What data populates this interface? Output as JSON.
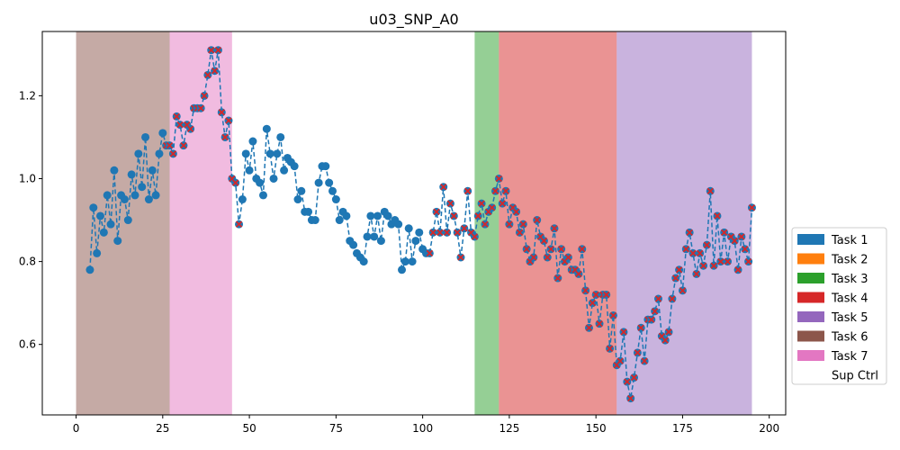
{
  "chart_data": {
    "type": "line",
    "title": "u03_SNP_A0",
    "xlabel": "",
    "ylabel": "",
    "xlim": [
      -9.75,
      204.75
    ],
    "ylim": [
      0.43,
      1.355
    ],
    "x_ticks": [
      0,
      25,
      50,
      75,
      100,
      125,
      150,
      175,
      200
    ],
    "y_ticks": [
      0.6,
      0.8,
      1.0,
      1.2
    ],
    "grid": false,
    "legend_position": "right",
    "legend": [
      {
        "label": "Task 1",
        "color": "#1f77b4"
      },
      {
        "label": "Task 2",
        "color": "#ff7f0e"
      },
      {
        "label": "Task 3",
        "color": "#2ca02c"
      },
      {
        "label": "Task 4",
        "color": "#d62728"
      },
      {
        "label": "Task 5",
        "color": "#9467bd"
      },
      {
        "label": "Task 6",
        "color": "#8c564b"
      },
      {
        "label": "Task 7",
        "color": "#e377c2"
      },
      {
        "label": "Sup Ctrl",
        "color": "#ffffff"
      }
    ],
    "spans": [
      {
        "task": "Task 6",
        "x0": 0,
        "x1": 27,
        "color": "#8c564b"
      },
      {
        "task": "Task 7",
        "x0": 27,
        "x1": 45,
        "color": "#e377c2"
      },
      {
        "task": "Task 3",
        "x0": 115,
        "x1": 122,
        "color": "#2ca02c"
      },
      {
        "task": "Task 4",
        "x0": 122,
        "x1": 156,
        "color": "#d62728"
      },
      {
        "task": "Task 5",
        "x0": 156,
        "x1": 195,
        "color": "#9467bd"
      }
    ],
    "series": {
      "line_color": "#1f77b4",
      "marker_color": "#1f77b4",
      "highlight_color": "#d62728",
      "x": [
        4,
        5,
        6,
        7,
        8,
        9,
        10,
        11,
        12,
        13,
        14,
        15,
        16,
        17,
        18,
        19,
        20,
        21,
        22,
        23,
        24,
        25,
        26,
        27,
        28,
        29,
        30,
        31,
        32,
        33,
        34,
        35,
        36,
        37,
        38,
        39,
        40,
        41,
        42,
        43,
        44,
        45,
        46,
        47,
        48,
        49,
        50,
        51,
        52,
        53,
        54,
        55,
        56,
        57,
        58,
        59,
        60,
        61,
        62,
        63,
        64,
        65,
        66,
        67,
        68,
        69,
        70,
        71,
        72,
        73,
        74,
        75,
        76,
        77,
        78,
        79,
        80,
        81,
        82,
        83,
        84,
        85,
        86,
        87,
        88,
        89,
        90,
        91,
        92,
        93,
        94,
        95,
        96,
        97,
        98,
        99,
        100,
        101,
        102,
        103,
        104,
        105,
        106,
        107,
        108,
        109,
        110,
        111,
        112,
        113,
        114,
        115,
        116,
        117,
        118,
        119,
        120,
        121,
        122,
        123,
        124,
        125,
        126,
        127,
        128,
        129,
        130,
        131,
        132,
        133,
        134,
        135,
        136,
        137,
        138,
        139,
        140,
        141,
        142,
        143,
        144,
        145,
        146,
        147,
        148,
        149,
        150,
        151,
        152,
        153,
        154,
        155,
        156,
        157,
        158,
        159,
        160,
        161,
        162,
        163,
        164,
        165,
        166,
        167,
        168,
        169,
        170,
        171,
        172,
        173,
        174,
        175,
        176,
        177,
        178,
        179,
        180,
        181,
        182,
        183,
        184,
        185,
        186,
        187,
        188,
        189,
        190,
        191,
        192,
        193,
        194,
        195
      ],
      "y": [
        0.78,
        0.93,
        0.82,
        0.91,
        0.87,
        0.96,
        0.89,
        1.02,
        0.85,
        0.96,
        0.95,
        0.9,
        1.01,
        0.96,
        1.06,
        0.98,
        1.1,
        0.95,
        1.02,
        0.96,
        1.06,
        1.11,
        1.08,
        1.08,
        1.06,
        1.15,
        1.13,
        1.08,
        1.13,
        1.12,
        1.17,
        1.17,
        1.17,
        1.2,
        1.25,
        1.31,
        1.26,
        1.31,
        1.16,
        1.1,
        1.14,
        1.0,
        0.99,
        0.89,
        0.95,
        1.06,
        1.02,
        1.09,
        1.0,
        0.99,
        0.96,
        1.12,
        1.06,
        1.0,
        1.06,
        1.1,
        1.02,
        1.05,
        1.04,
        1.03,
        0.95,
        0.97,
        0.92,
        0.92,
        0.9,
        0.9,
        0.99,
        1.03,
        1.03,
        0.99,
        0.97,
        0.95,
        0.9,
        0.92,
        0.91,
        0.85,
        0.84,
        0.82,
        0.81,
        0.8,
        0.86,
        0.91,
        0.86,
        0.91,
        0.85,
        0.92,
        0.91,
        0.89,
        0.9,
        0.89,
        0.78,
        0.8,
        0.88,
        0.8,
        0.85,
        0.87,
        0.83,
        0.82,
        0.82,
        0.87,
        0.92,
        0.87,
        0.98,
        0.87,
        0.94,
        0.91,
        0.87,
        0.81,
        0.88,
        0.97,
        0.87,
        0.86,
        0.91,
        0.94,
        0.89,
        0.92,
        0.93,
        0.97,
        1.0,
        0.94,
        0.97,
        0.89,
        0.93,
        0.92,
        0.87,
        0.89,
        0.83,
        0.8,
        0.81,
        0.9,
        0.86,
        0.85,
        0.81,
        0.83,
        0.88,
        0.76,
        0.83,
        0.8,
        0.81,
        0.78,
        0.78,
        0.77,
        0.83,
        0.73,
        0.64,
        0.7,
        0.72,
        0.65,
        0.72,
        0.72,
        0.59,
        0.67,
        0.55,
        0.56,
        0.63,
        0.51,
        0.47,
        0.52,
        0.58,
        0.64,
        0.56,
        0.66,
        0.66,
        0.68,
        0.71,
        0.62,
        0.61,
        0.63,
        0.71,
        0.76,
        0.78,
        0.73,
        0.83,
        0.87,
        0.82,
        0.77,
        0.82,
        0.79,
        0.84,
        0.97,
        0.79,
        0.91,
        0.8,
        0.87,
        0.8,
        0.86,
        0.85,
        0.78,
        0.86,
        0.83,
        0.8,
        0.93
      ],
      "highlighted_x": [
        26,
        27,
        28,
        29,
        30,
        31,
        32,
        33,
        34,
        35,
        36,
        37,
        38,
        39,
        40,
        41,
        42,
        43,
        44,
        45,
        46,
        47,
        102,
        103,
        104,
        105,
        106,
        107,
        108,
        109,
        110,
        111,
        112,
        113,
        114,
        115,
        116,
        117,
        118,
        119,
        120,
        121,
        122,
        123,
        124,
        125,
        126,
        127,
        128,
        129,
        130,
        131,
        132,
        133,
        134,
        135,
        136,
        137,
        138,
        139,
        140,
        141,
        142,
        143,
        144,
        145,
        146,
        147,
        148,
        149,
        150,
        151,
        152,
        153,
        154,
        155,
        156,
        157,
        158,
        159,
        160,
        161,
        162,
        163,
        164,
        165,
        166,
        167,
        168,
        169,
        170,
        171,
        172,
        173,
        174,
        175,
        176,
        177,
        178,
        179,
        180,
        181,
        182,
        183,
        184,
        185,
        186,
        187,
        188,
        189,
        190,
        191,
        192,
        193,
        194,
        195
      ]
    }
  }
}
